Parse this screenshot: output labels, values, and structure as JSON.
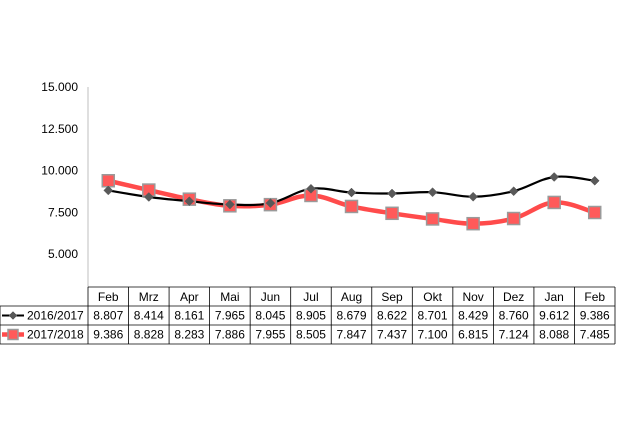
{
  "chart_data": {
    "type": "line",
    "categories": [
      "Feb",
      "Mrz",
      "Apr",
      "Mai",
      "Jun",
      "Jul",
      "Aug",
      "Sep",
      "Okt",
      "Nov",
      "Dez",
      "Jan",
      "Feb"
    ],
    "y_ticks": [
      "15.000",
      "12.500",
      "10.000",
      "7.500",
      "5.000"
    ],
    "ylim": [
      5000,
      15000
    ],
    "grid": false,
    "legend": "data-table-left",
    "series": [
      {
        "name": "2016/2017",
        "color": "#000000",
        "marker_color": "#595959",
        "marker": "diamond",
        "values": [
          8807,
          8414,
          8161,
          7965,
          8045,
          8905,
          8679,
          8622,
          8701,
          8429,
          8760,
          9612,
          9386
        ],
        "labels": [
          "8.807",
          "8.414",
          "8.161",
          "7.965",
          "8.045",
          "8.905",
          "8.679",
          "8.622",
          "8.701",
          "8.429",
          "8.760",
          "9.612",
          "9.386"
        ]
      },
      {
        "name": "2017/2018",
        "color": "#ff4b4b",
        "marker_color": "#ff5a5a",
        "marker_edge": "#9a9a9a",
        "marker": "square",
        "values": [
          9386,
          8828,
          8283,
          7886,
          7955,
          8505,
          7847,
          7437,
          7100,
          6815,
          7124,
          8088,
          7485
        ],
        "labels": [
          "9.386",
          "8.828",
          "8.283",
          "7.886",
          "7.955",
          "8.505",
          "7.847",
          "7.437",
          "7.100",
          "6.815",
          "7.124",
          "8.088",
          "7.485"
        ]
      }
    ]
  }
}
